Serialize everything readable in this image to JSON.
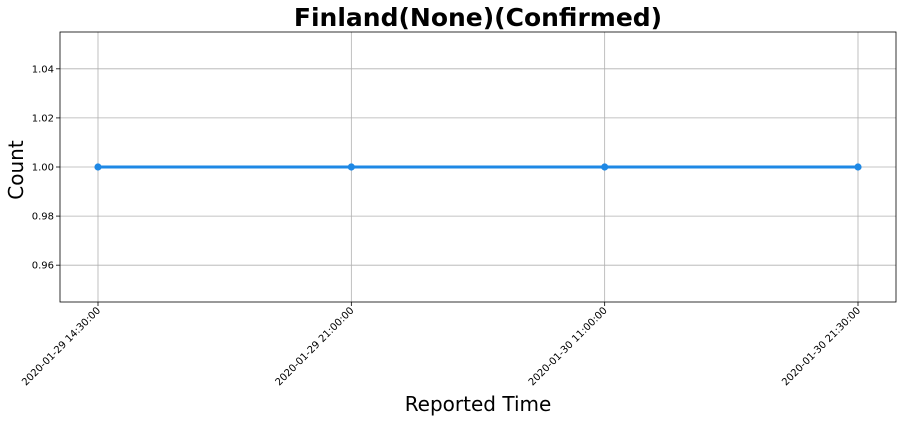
{
  "chart_data": {
    "type": "line",
    "title": "Finland(None)(Confirmed)",
    "xlabel": "Reported Time",
    "ylabel": "Count",
    "categories": [
      "2020-01-29 14:30:00",
      "2020-01-29 21:00:00",
      "2020-01-30 11:00:00",
      "2020-01-30 21:30:00"
    ],
    "series": [
      {
        "values": [
          1,
          1,
          1,
          1
        ],
        "color": "#1e88e5",
        "marker": "circle"
      }
    ],
    "ylim": [
      0.945,
      1.055
    ],
    "yticks": [
      0.96,
      0.98,
      1.0,
      1.02,
      1.04
    ],
    "ytick_labels": [
      "0.96",
      "0.98",
      "1.00",
      "1.02",
      "1.04"
    ],
    "grid": true,
    "x_tick_rotation_deg": 45
  }
}
